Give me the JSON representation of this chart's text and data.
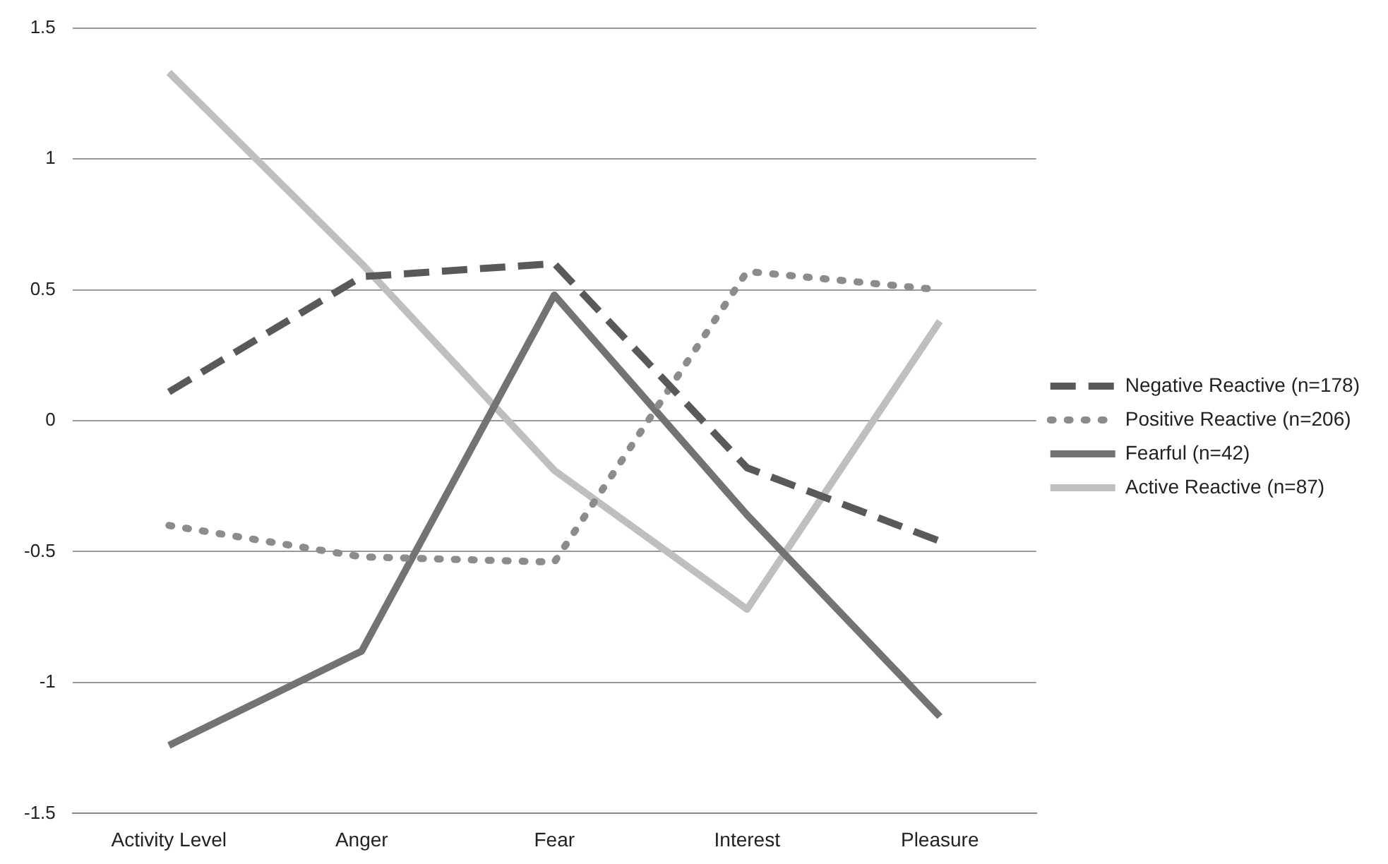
{
  "chart_data": {
    "type": "line",
    "categories": [
      "Activity Level",
      "Anger",
      "Fear",
      "Interest",
      "Pleasure"
    ],
    "series": [
      {
        "name": "Negative Reactive (n=178)",
        "color": "#595959",
        "line_style": "dashed",
        "values": [
          0.11,
          0.55,
          0.6,
          -0.18,
          -0.46
        ]
      },
      {
        "name": "Positive Reactive (n=206)",
        "color": "#8c8c8c",
        "line_style": "dotted",
        "values": [
          -0.4,
          -0.52,
          -0.54,
          0.57,
          0.5
        ]
      },
      {
        "name": "Fearful (n=42)",
        "color": "#737373",
        "line_style": "solid",
        "values": [
          -1.24,
          -0.88,
          0.48,
          -0.36,
          -1.13
        ]
      },
      {
        "name": "Active Reactive (n=87)",
        "color": "#bfbfbf",
        "line_style": "solid",
        "values": [
          1.33,
          0.6,
          -0.19,
          -0.72,
          0.38
        ]
      }
    ],
    "ylim": [
      -1.5,
      1.5
    ],
    "yticks": [
      -1.5,
      -1,
      -0.5,
      0,
      0.5,
      1,
      1.5
    ],
    "grid": "y",
    "legend": "right",
    "marker": "none"
  }
}
